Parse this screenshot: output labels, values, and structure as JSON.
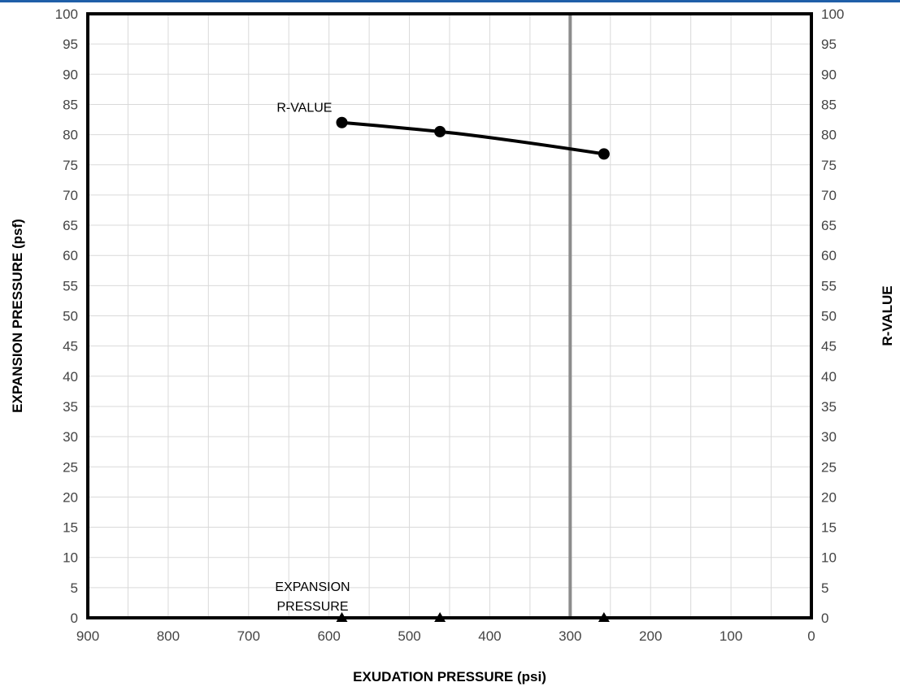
{
  "chart_data": {
    "type": "scatter",
    "xlabel": "EXUDATION PRESSURE (psi)",
    "ylabel": "EXPANSION PRESSURE (psf)",
    "ylabel_right": "R-VALUE",
    "xlim": [
      900,
      0
    ],
    "ylim": [
      0,
      100
    ],
    "ylim_right": [
      0,
      100
    ],
    "x_ticks": [
      900,
      800,
      700,
      600,
      500,
      400,
      300,
      200,
      100,
      0
    ],
    "y_ticks": [
      0,
      5,
      10,
      15,
      20,
      25,
      30,
      35,
      40,
      45,
      50,
      55,
      60,
      65,
      70,
      75,
      80,
      85,
      90,
      95,
      100
    ],
    "grid": true,
    "reference_line": {
      "x": 300,
      "color": "#8c8c8c"
    },
    "series": [
      {
        "name": "R-VALUE",
        "axis": "right",
        "marker": "circle",
        "connected": true,
        "x": [
          584,
          462,
          258
        ],
        "y": [
          82.0,
          80.5,
          76.8
        ]
      },
      {
        "name": "EXPANSION PRESSURE",
        "axis": "left",
        "marker": "triangle",
        "connected": true,
        "x": [
          584,
          462,
          258
        ],
        "y": [
          0,
          0,
          0
        ]
      }
    ],
    "annotations": [
      {
        "text": "R-VALUE",
        "near_series": "R-VALUE"
      },
      {
        "text_lines": [
          "EXPANSION",
          "PRESSURE"
        ],
        "near_series": "EXPANSION PRESSURE"
      }
    ]
  },
  "colors": {
    "top_bar": "#1f5fa8",
    "grid": "#d9d9d9",
    "frame": "#000000",
    "marker": "#000000",
    "reference_line": "#8c8c8c"
  }
}
